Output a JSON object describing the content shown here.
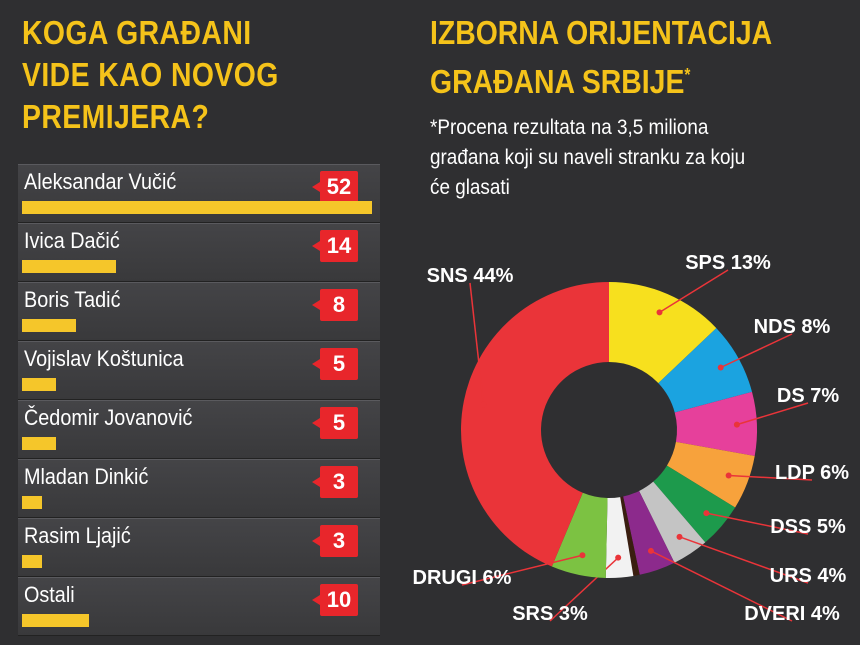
{
  "left_title": "KOGA GRAĐANI VIDE KAO NOVOG PREMIJERA?",
  "right_title": "IZBORNA ORIJENTACIJA GRAĐANA SRBIJE*",
  "right_note": "*Procena rezultata na 3,5 miliona građana koji su naveli stranku za koju će glasati",
  "chart_data": [
    {
      "type": "bar",
      "title": "KOGA GRAĐANI VIDE KAO NOVOG PREMIJERA?",
      "categories": [
        "Aleksandar Vučić",
        "Ivica Dačić",
        "Boris Tadić",
        "Vojislav Koštunica",
        "Čedomir Jovanović",
        "Mladan Dinkić",
        "Rasim Ljajić",
        "Ostali"
      ],
      "values": [
        52,
        14,
        8,
        5,
        5,
        3,
        3,
        10
      ],
      "bar_color": "#f5c62a",
      "badge_color": "#e8262b"
    },
    {
      "type": "pie",
      "title": "IZBORNA ORIJENTACIJA GRAĐANA SRBIJE*",
      "donut": true,
      "slices": [
        {
          "label": "SPS 13%",
          "value": 13,
          "color": "#f7e01e"
        },
        {
          "label": "NDS 8%",
          "value": 8,
          "color": "#1ba3e0"
        },
        {
          "label": "DS 7%",
          "value": 7,
          "color": "#e6409b"
        },
        {
          "label": "LDP 6%",
          "value": 6,
          "color": "#f7a23c"
        },
        {
          "label": "DSS 5%",
          "value": 5,
          "color": "#1d9a4c"
        },
        {
          "label": "URS 4%",
          "value": 4,
          "color": "#c4c4c4"
        },
        {
          "label": "DVERI 4%",
          "value": 4,
          "color": "#8c2a8c"
        },
        {
          "label": "",
          "value": 0.7,
          "color": "#3a1e10"
        },
        {
          "label": "SRS 3%",
          "value": 3,
          "color": "#f2f2f2"
        },
        {
          "label": "DRUGI 6%",
          "value": 6,
          "color": "#7cc242"
        },
        {
          "label": "SNS 44%",
          "value": 44,
          "color": "#ea3439"
        }
      ]
    }
  ]
}
